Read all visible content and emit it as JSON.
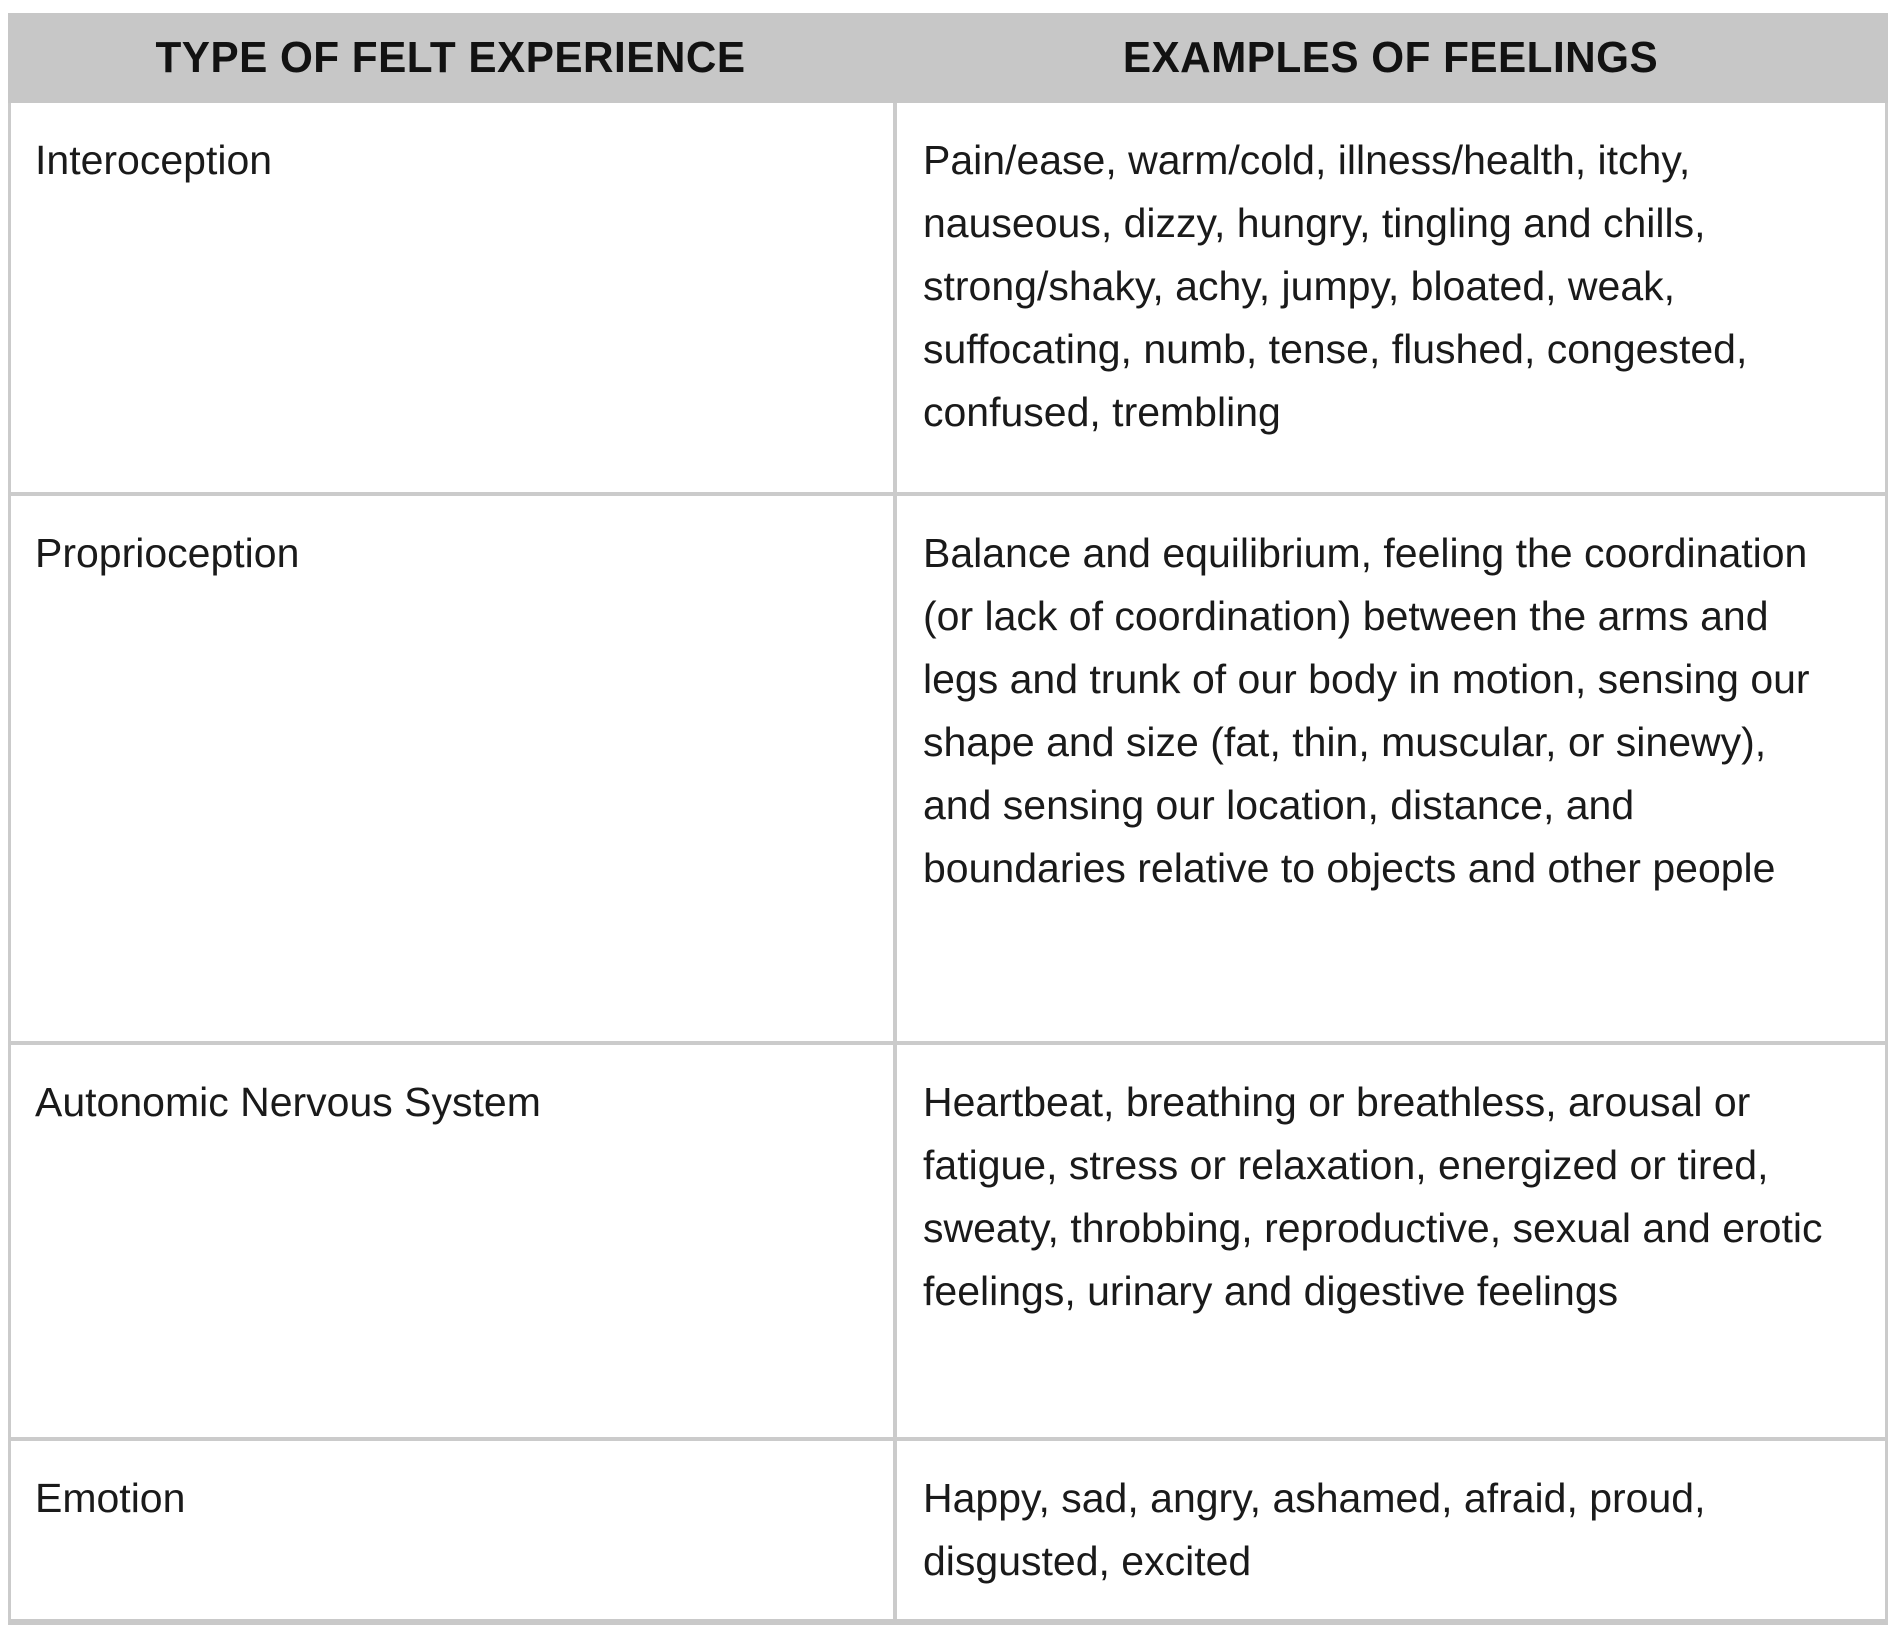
{
  "table": {
    "header": {
      "type_col": "TYPE OF FELT EXPERIENCE",
      "examples_col": "EXAMPLES OF FEELINGS"
    },
    "rows": [
      {
        "type": "Interoception",
        "examples": "Pain/ease, warm/cold, illness/health, itchy, nauseous, dizzy, hungry, tingling and chills, strong/shaky, achy, jumpy, bloated, weak, suffocating, numb, tense, flushed, congested, confused, trembling"
      },
      {
        "type": "Proprioception",
        "examples": "Balance and equilibrium, feeling the coordination (or lack of coordination) between the arms and legs and trunk of our body in motion, sensing our shape and size (fat, thin, muscular, or sinewy), and sensing our location, distance, and boundaries relative to objects and other people"
      },
      {
        "type": "Autonomic Nervous System",
        "examples": "Heartbeat, breathing or breathless, arousal or fatigue, stress or relaxation, energized or tired, sweaty, throbbing, reproductive, sexual and erotic feelings, urinary and digestive feelings"
      },
      {
        "type": "Emotion",
        "examples": "Happy, sad, angry, ashamed, afraid, proud, disgusted, excited"
      }
    ],
    "colors": {
      "header_background": "#c7c7c7",
      "rule": "#cbcbcb",
      "text": "#1a1a1a"
    }
  }
}
